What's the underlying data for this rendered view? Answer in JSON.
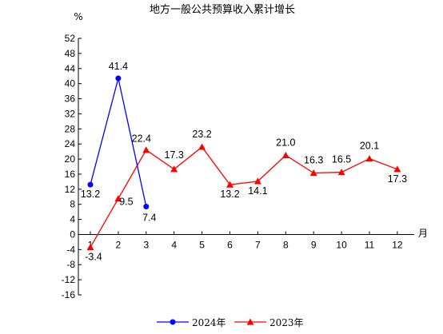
{
  "chart_data": {
    "type": "line",
    "title": "地方一般公共预算收入累计增长",
    "ylabel": "%",
    "xlabel": "月",
    "ylim": [
      -16,
      52
    ],
    "yticks": [
      52,
      48,
      44,
      40,
      36,
      32,
      28,
      24,
      20,
      16,
      12,
      8,
      4,
      0,
      -4,
      -8,
      -12,
      -16
    ],
    "categories": [
      1,
      2,
      3,
      4,
      5,
      6,
      7,
      8,
      9,
      10,
      11,
      12
    ],
    "grid": false,
    "legend_position": "bottom",
    "series": [
      {
        "name": "2024年",
        "color": "#0000ff",
        "marker": "circle",
        "x": [
          1,
          2,
          3
        ],
        "values": [
          13.2,
          41.4,
          7.4
        ],
        "labels": [
          "13.2",
          "41.4",
          "7.4"
        ]
      },
      {
        "name": "2023年",
        "color": "#ff0000",
        "marker": "triangle",
        "x": [
          1,
          2,
          3,
          4,
          5,
          6,
          7,
          8,
          9,
          10,
          11,
          12
        ],
        "values": [
          -3.4,
          9.5,
          22.4,
          17.3,
          23.2,
          13.2,
          14.1,
          21.0,
          16.3,
          16.5,
          20.1,
          17.3
        ],
        "labels": [
          "-3.4",
          "9.5",
          "22.4",
          "17.3",
          "23.2",
          "13.2",
          "14.1",
          "21.0",
          "16.3",
          "16.5",
          "20.1",
          "17.3"
        ]
      }
    ]
  }
}
